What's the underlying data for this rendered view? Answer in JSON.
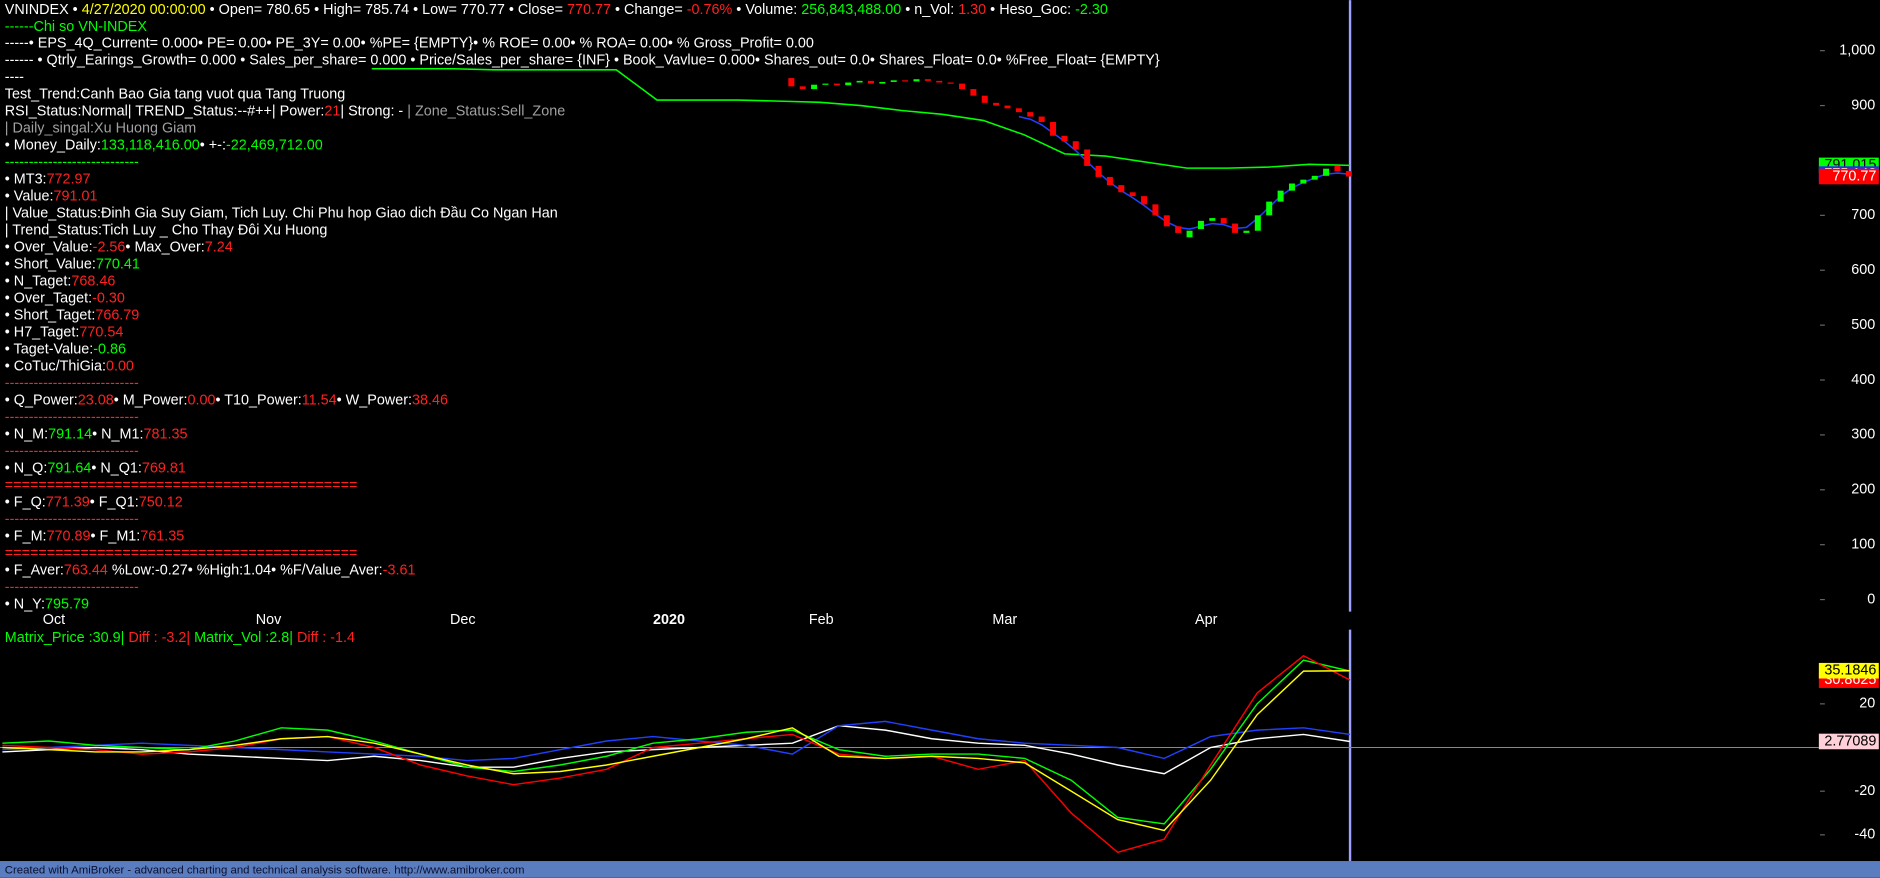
{
  "info_lines": [
    [
      [
        "VNINDEX",
        "w"
      ],
      [
        " • ",
        "w"
      ],
      [
        "4/27/2020 00:00:00",
        "y"
      ],
      [
        " • Open= 780.65 • High= 785.74 • Low= 770.77 • Close= ",
        "w"
      ],
      [
        "770.77",
        "r"
      ],
      [
        " • Change= ",
        "w"
      ],
      [
        "-0.76%",
        "r"
      ],
      [
        " • Volume: ",
        "w"
      ],
      [
        "256,843,488.00",
        "g"
      ],
      [
        " • n_Vol: ",
        "w"
      ],
      [
        "1.30",
        "r"
      ],
      [
        " • Heso_Goc: ",
        "w"
      ],
      [
        "-2.30",
        "g"
      ]
    ],
    [
      [
        "------Chi so VN-INDEX",
        "g"
      ]
    ],
    [
      [
        "-----• EPS_4Q_Current= 0.000• PE= 0.00• PE_3Y= 0.00• %PE= {EMPTY}• % ROE= 0.00• % ROA= 0.00• % Gross_Profit= 0.00",
        "w"
      ]
    ],
    [
      [
        "------ • Qtrly_Earings_Growth= 0.000 • Sales_per_share= 0.000 • Price/Sales_per_share= {INF} • Book_Vavlue= 0.000• Shares_out= 0.0• Shares_Float= 0.0• %Free_Float= {EMPTY}",
        "w"
      ]
    ],
    [
      [
        "----",
        "w"
      ]
    ],
    [
      [
        "Test_Trend:Canh Bao Gia tang vuot qua Tang Truong",
        "w"
      ]
    ],
    [
      [
        "RSI_Status:Normal| TREND_Status:--#++| Power:",
        "w"
      ],
      [
        "21",
        "r"
      ],
      [
        "| Strong: - ",
        "w"
      ],
      [
        "| Zone_Status:Sell_Zone",
        "gray"
      ]
    ],
    [
      [
        "| Daily_singal:Xu Huong Giam",
        "gray"
      ]
    ],
    [
      [
        "• Money_Daily:",
        "w"
      ],
      [
        "133,118,416.00",
        "g"
      ],
      [
        "• +-:",
        "w"
      ],
      [
        "-22,469,712.00",
        "g"
      ]
    ],
    [
      [
        "----------------------------",
        "g"
      ]
    ],
    [
      [
        "• MT3:",
        "w"
      ],
      [
        "772.97",
        "r"
      ]
    ],
    [
      [
        "• Value:",
        "w"
      ],
      [
        "791.01",
        "r"
      ]
    ],
    [
      [
        "| Value_Status:Đinh Gia Suy Giam, Tich Luy. Chi Phu hop Giao dich Đầu Co Ngan Han",
        "w"
      ]
    ],
    [
      [
        "| Trend_Status:Tich Luy _ Cho Thay Đôi Xu Huong",
        "w"
      ]
    ],
    [
      [
        "• Over_Value:",
        "w"
      ],
      [
        "-2.56",
        "r"
      ],
      [
        "• Max_Over:",
        "w"
      ],
      [
        "7.24",
        "r"
      ]
    ],
    [
      [
        "• Short_Value:",
        "w"
      ],
      [
        "770.41",
        "g"
      ]
    ],
    [
      [
        "• N_Taget:",
        "w"
      ],
      [
        "768.46",
        "r"
      ]
    ],
    [
      [
        "• Over_Taget:",
        "w"
      ],
      [
        "-0.30",
        "r"
      ]
    ],
    [
      [
        "• Short_Taget:",
        "w"
      ],
      [
        "766.79",
        "r"
      ]
    ],
    [
      [
        "• H7_Taget:",
        "w"
      ],
      [
        "770.54",
        "r"
      ]
    ],
    [
      [
        "• Taget-Value:",
        "w"
      ],
      [
        "-0.86",
        "g"
      ]
    ],
    [
      [
        "• CoTuc/ThiGia:",
        "w"
      ],
      [
        "0.00",
        "r"
      ]
    ],
    [
      [
        "----------------------------",
        "r"
      ]
    ],
    [
      [
        "• Q_Power:",
        "w"
      ],
      [
        "23.08",
        "r"
      ],
      [
        "• M_Power:",
        "w"
      ],
      [
        "0.00",
        "r"
      ],
      [
        "• T10_Power:",
        "w"
      ],
      [
        "11.54",
        "r"
      ],
      [
        "• W_Power:",
        "w"
      ],
      [
        "38.46",
        "r"
      ]
    ],
    [
      [
        "----------------------------",
        "r"
      ]
    ],
    [
      [
        "• N_M:",
        "w"
      ],
      [
        "791.14",
        "g"
      ],
      [
        "• N_M1:",
        "w"
      ],
      [
        "781.35",
        "r"
      ]
    ],
    [
      [
        "----------------------------",
        "r"
      ]
    ],
    [
      [
        "• N_Q:",
        "w"
      ],
      [
        "791.64",
        "g"
      ],
      [
        "• N_Q1:",
        "w"
      ],
      [
        "769.81",
        "r"
      ]
    ],
    [
      [
        "==========================================",
        "r"
      ]
    ],
    [
      [
        "• F_Q:",
        "w"
      ],
      [
        "771.39",
        "r"
      ],
      [
        "• F_Q1:",
        "w"
      ],
      [
        "750.12",
        "r"
      ]
    ],
    [
      [
        "----------------------------",
        "r"
      ]
    ],
    [
      [
        "• F_M:",
        "w"
      ],
      [
        "770.89",
        "r"
      ],
      [
        "• F_M1:",
        "w"
      ],
      [
        "761.35",
        "r"
      ]
    ],
    [
      [
        "==========================================",
        "r"
      ]
    ],
    [
      [
        "• F_Aver:",
        "w"
      ],
      [
        "763.44",
        "r"
      ],
      [
        " %Low:-0.27• %High:1.04• %F/Value_Aver:",
        "w"
      ],
      [
        "-3.61",
        "r"
      ]
    ],
    [
      [
        "----------------------------",
        "r"
      ]
    ],
    [
      [
        "• N_Y:",
        "w"
      ],
      [
        "795.79",
        "g"
      ]
    ]
  ],
  "price_panel": {
    "type": "candlestick",
    "open": [
      950,
      935,
      930,
      938,
      940,
      937,
      942,
      945,
      940,
      943,
      946,
      944,
      948,
      945,
      942,
      940,
      930,
      918,
      905,
      900,
      895,
      888,
      880,
      870,
      845,
      835,
      820,
      790,
      770,
      755,
      742,
      735,
      720,
      700,
      680,
      660,
      675,
      690,
      695,
      685,
      668,
      672,
      700,
      725,
      745,
      758,
      765,
      772,
      790,
      780.65
    ],
    "close": [
      935,
      930,
      938,
      940,
      937,
      942,
      945,
      940,
      943,
      946,
      944,
      948,
      945,
      942,
      940,
      930,
      918,
      905,
      900,
      895,
      888,
      880,
      870,
      845,
      835,
      820,
      790,
      770,
      755,
      742,
      735,
      720,
      700,
      680,
      668,
      672,
      690,
      695,
      685,
      668,
      672,
      700,
      725,
      745,
      758,
      765,
      772,
      785,
      780,
      770.77
    ],
    "up_color": "#00ff00",
    "down_color": "#ff0000",
    "badge": "#ff0000",
    "badge_text": "#ffffff",
    "lines": [
      {
        "color": "#00ff00",
        "badge": "#00ff00",
        "badge_text": "#000000",
        "values": [
          967,
          967,
          967,
          965,
          965,
          965,
          965,
          910,
          910,
          910,
          908,
          906,
          900,
          891,
          884,
          873,
          847,
          812,
          808,
          797,
          786,
          786,
          788,
          793,
          791.015
        ]
      },
      {
        "color": "#2040ff",
        "badge": "#2030ff",
        "badge_text": "#ffffff",
        "values": [
          880,
          875,
          865,
          850,
          835,
          818,
          798,
          778,
          760,
          745,
          732,
          718,
          702,
          688,
          678,
          675,
          680,
          685,
          683,
          676,
          678,
          695,
          715,
          735,
          750,
          760,
          768,
          775,
          777,
          775.148
        ]
      }
    ],
    "ylim": [
      -22,
      1092
    ],
    "yticks": [
      {
        "value": 1000,
        "label": "1,000"
      },
      900,
      700,
      600,
      500,
      400,
      300,
      200,
      100,
      0
    ],
    "x_labels": [
      "Oct",
      "Nov",
      "Dec",
      "2020",
      "Feb",
      "Mar",
      "Apr"
    ]
  },
  "indicator_panel": {
    "type": "line",
    "header": [
      [
        "Matrix_Price :30.9|",
        "g"
      ],
      [
        "  Diff : -3.2|",
        "r"
      ],
      [
        " Matrix_Vol :2.8|",
        "g"
      ],
      [
        "  Diff : -1.4",
        "r"
      ]
    ],
    "ylim": [
      -52,
      54
    ],
    "yticks": [
      20,
      -20,
      -40
    ],
    "series": [
      {
        "color": "#ffffff",
        "badge": "#ffd0d8",
        "badge_text": "#000000",
        "values": [
          -2,
          -1,
          0,
          -1,
          -3,
          -4,
          -5,
          -6,
          -4,
          -6,
          -9,
          -9,
          -5,
          -2,
          -1,
          0,
          1,
          2,
          10,
          8,
          4,
          2,
          1,
          -3,
          -8,
          -12,
          0,
          4,
          6,
          2.77089
        ]
      },
      {
        "color": "#2040ff",
        "values": [
          -1,
          0,
          1,
          2,
          1,
          0,
          -1,
          -2,
          -3,
          -4,
          -6,
          -5,
          -1,
          3,
          5,
          3,
          1,
          -3,
          10,
          12,
          8,
          4,
          2,
          1,
          0,
          -5,
          5,
          8,
          9,
          6
        ]
      },
      {
        "color": "#00ff00",
        "values": [
          2,
          3,
          1,
          0,
          -1,
          3,
          9,
          8,
          3,
          -3,
          -9,
          -11,
          -8,
          -4,
          2,
          4,
          7,
          8,
          -1,
          -4,
          -3,
          -3,
          -5,
          -15,
          -32,
          -35,
          -10,
          20,
          40,
          35
        ]
      },
      {
        "color": "#ff0000",
        "badge": "#ff0000",
        "badge_text": "#ffffff",
        "values": [
          1,
          0,
          -1,
          -3,
          -2,
          0,
          4,
          5,
          0,
          -8,
          -13,
          -17,
          -14,
          -10,
          0,
          2,
          4,
          6,
          -3,
          -5,
          -4,
          -10,
          -6,
          -30,
          -48,
          -42,
          -8,
          25,
          42,
          30.8625
        ]
      },
      {
        "color": "#ffff00",
        "badge": "#ffff00",
        "badge_text": "#000000",
        "values": [
          0,
          -1,
          -2,
          -2,
          -1,
          1,
          4,
          5,
          2,
          -3,
          -8,
          -12,
          -11,
          -8,
          -4,
          0,
          4,
          9,
          -4,
          -5,
          -4,
          -5,
          -7,
          -20,
          -33,
          -38,
          -15,
          15,
          35,
          35.1846
        ]
      }
    ]
  },
  "footer": "Created with AmiBroker - advanced charting and technical analysis software. http://www.amibroker.com"
}
